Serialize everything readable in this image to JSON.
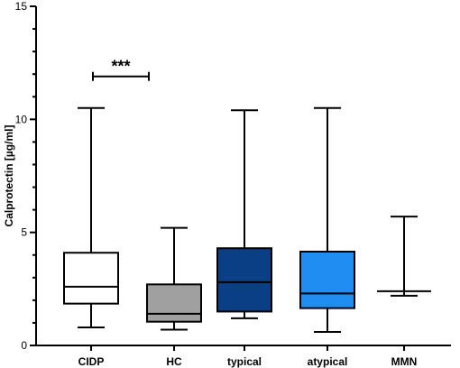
{
  "chart_data": {
    "type": "box",
    "ylabel": "Calprotectin [µg/ml]",
    "xlabel": "",
    "ylim": [
      0,
      15
    ],
    "yticks": [
      0,
      5,
      10,
      15
    ],
    "grid": false,
    "categories": [
      "CIDP",
      "HC",
      "typical",
      "atypical",
      "MMN"
    ],
    "boxes": [
      {
        "category": "CIDP",
        "min": 0.8,
        "q1": 1.85,
        "median": 2.6,
        "q3": 4.1,
        "max": 10.5,
        "fill": "#ffffff"
      },
      {
        "category": "HC",
        "min": 0.7,
        "q1": 1.05,
        "median": 1.4,
        "q3": 2.7,
        "max": 5.2,
        "fill": "#a0a0a0"
      },
      {
        "category": "typical",
        "min": 1.2,
        "q1": 1.5,
        "median": 2.8,
        "q3": 4.3,
        "max": 10.4,
        "fill": "#0a3f86"
      },
      {
        "category": "atypical",
        "min": 0.6,
        "q1": 1.65,
        "median": 2.3,
        "q3": 4.15,
        "max": 10.5,
        "fill": "#1f8df2"
      },
      {
        "category": "MMN",
        "min": 2.2,
        "q1": 2.4,
        "median": 2.4,
        "q3": 2.4,
        "max": 5.7,
        "fill": "#ffffff"
      }
    ],
    "annotations": [
      {
        "from": "CIDP",
        "to": "HC",
        "label": "***",
        "y": 11.9
      }
    ]
  }
}
